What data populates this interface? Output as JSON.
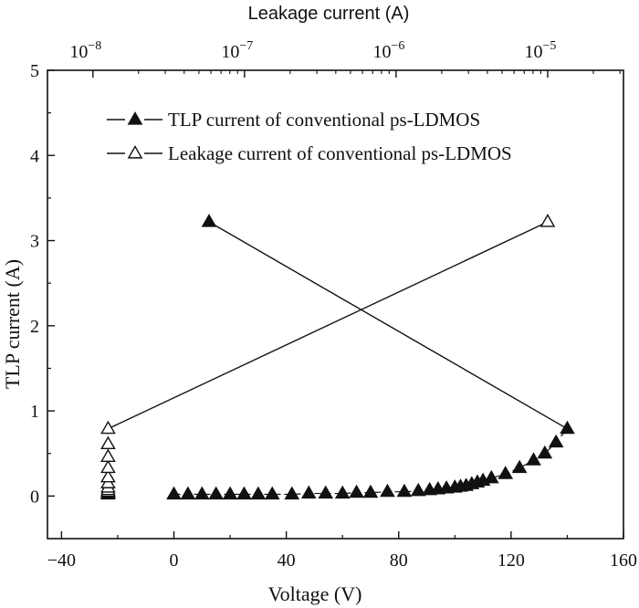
{
  "chart_data": {
    "type": "scatter",
    "xlabel": "Voltage (V)",
    "ylabel": "TLP current (A)",
    "x2label": "Leakage current (A)",
    "xlim": [
      -45,
      160
    ],
    "ylim": [
      -0.5,
      5
    ],
    "x2lim_log10": [
      -8.3,
      -4.5
    ],
    "x_ticks": [
      -40,
      0,
      40,
      80,
      120,
      160
    ],
    "x_tick_labels": [
      "−40",
      "0",
      "40",
      "80",
      "120",
      "160"
    ],
    "y_ticks": [
      0,
      1,
      2,
      3,
      4,
      5
    ],
    "y_tick_labels": [
      "0",
      "1",
      "2",
      "3",
      "4",
      "5"
    ],
    "x2_ticks": [
      {
        "base": "10",
        "exp": "−8",
        "log10": -8
      },
      {
        "base": "10",
        "exp": "−7",
        "log10": -7
      },
      {
        "base": "10",
        "exp": "−6",
        "log10": -6
      },
      {
        "base": "10",
        "exp": "−5",
        "log10": -5
      }
    ],
    "legend_position": "top-right",
    "grid": false,
    "series": [
      {
        "name": "TLP current of conventional ps-LDMOS",
        "axis": "voltage",
        "marker": "filled-triangle",
        "dashed_line": true,
        "x": [
          0,
          5,
          10,
          15,
          20,
          25,
          30,
          35,
          42,
          48,
          54,
          60,
          65,
          70,
          76,
          82,
          87,
          91,
          94,
          97,
          100,
          102,
          104,
          106,
          108,
          110,
          113,
          118,
          123,
          128,
          132,
          136,
          140
        ],
        "y": [
          0.02,
          0.02,
          0.02,
          0.02,
          0.02,
          0.02,
          0.02,
          0.02,
          0.02,
          0.03,
          0.03,
          0.03,
          0.04,
          0.04,
          0.05,
          0.05,
          0.06,
          0.07,
          0.08,
          0.09,
          0.1,
          0.11,
          0.12,
          0.14,
          0.16,
          0.18,
          0.21,
          0.26,
          0.33,
          0.42,
          0.5,
          0.63,
          0.79
        ]
      },
      {
        "name": "Leakage current of conventional ps-LDMOS",
        "axis": "leakage",
        "marker": "open-triangle",
        "dashed_line": true,
        "x_leakage_log10": [
          -7.9,
          -7.9,
          -7.9,
          -7.9,
          -7.9,
          -7.9,
          -7.9,
          -7.9,
          -7.9,
          -7.9,
          -7.9,
          -7.9
        ],
        "y": [
          0.02,
          0.03,
          0.04,
          0.05,
          0.07,
          0.1,
          0.15,
          0.22,
          0.33,
          0.46,
          0.61,
          0.79
        ]
      }
    ],
    "guide_lines": [
      {
        "from": {
          "voltage": 12.5,
          "tlp": 3.22
        },
        "to": {
          "voltage": 140,
          "tlp": 0.79
        },
        "end_markers": [
          "filled-triangle",
          "none"
        ]
      },
      {
        "from": {
          "leakage_log10": -7.9,
          "tlp": 0.79
        },
        "to": {
          "leakage_log10": -5.0,
          "tlp": 3.22
        },
        "end_markers": [
          "none",
          "open-triangle"
        ]
      }
    ]
  }
}
